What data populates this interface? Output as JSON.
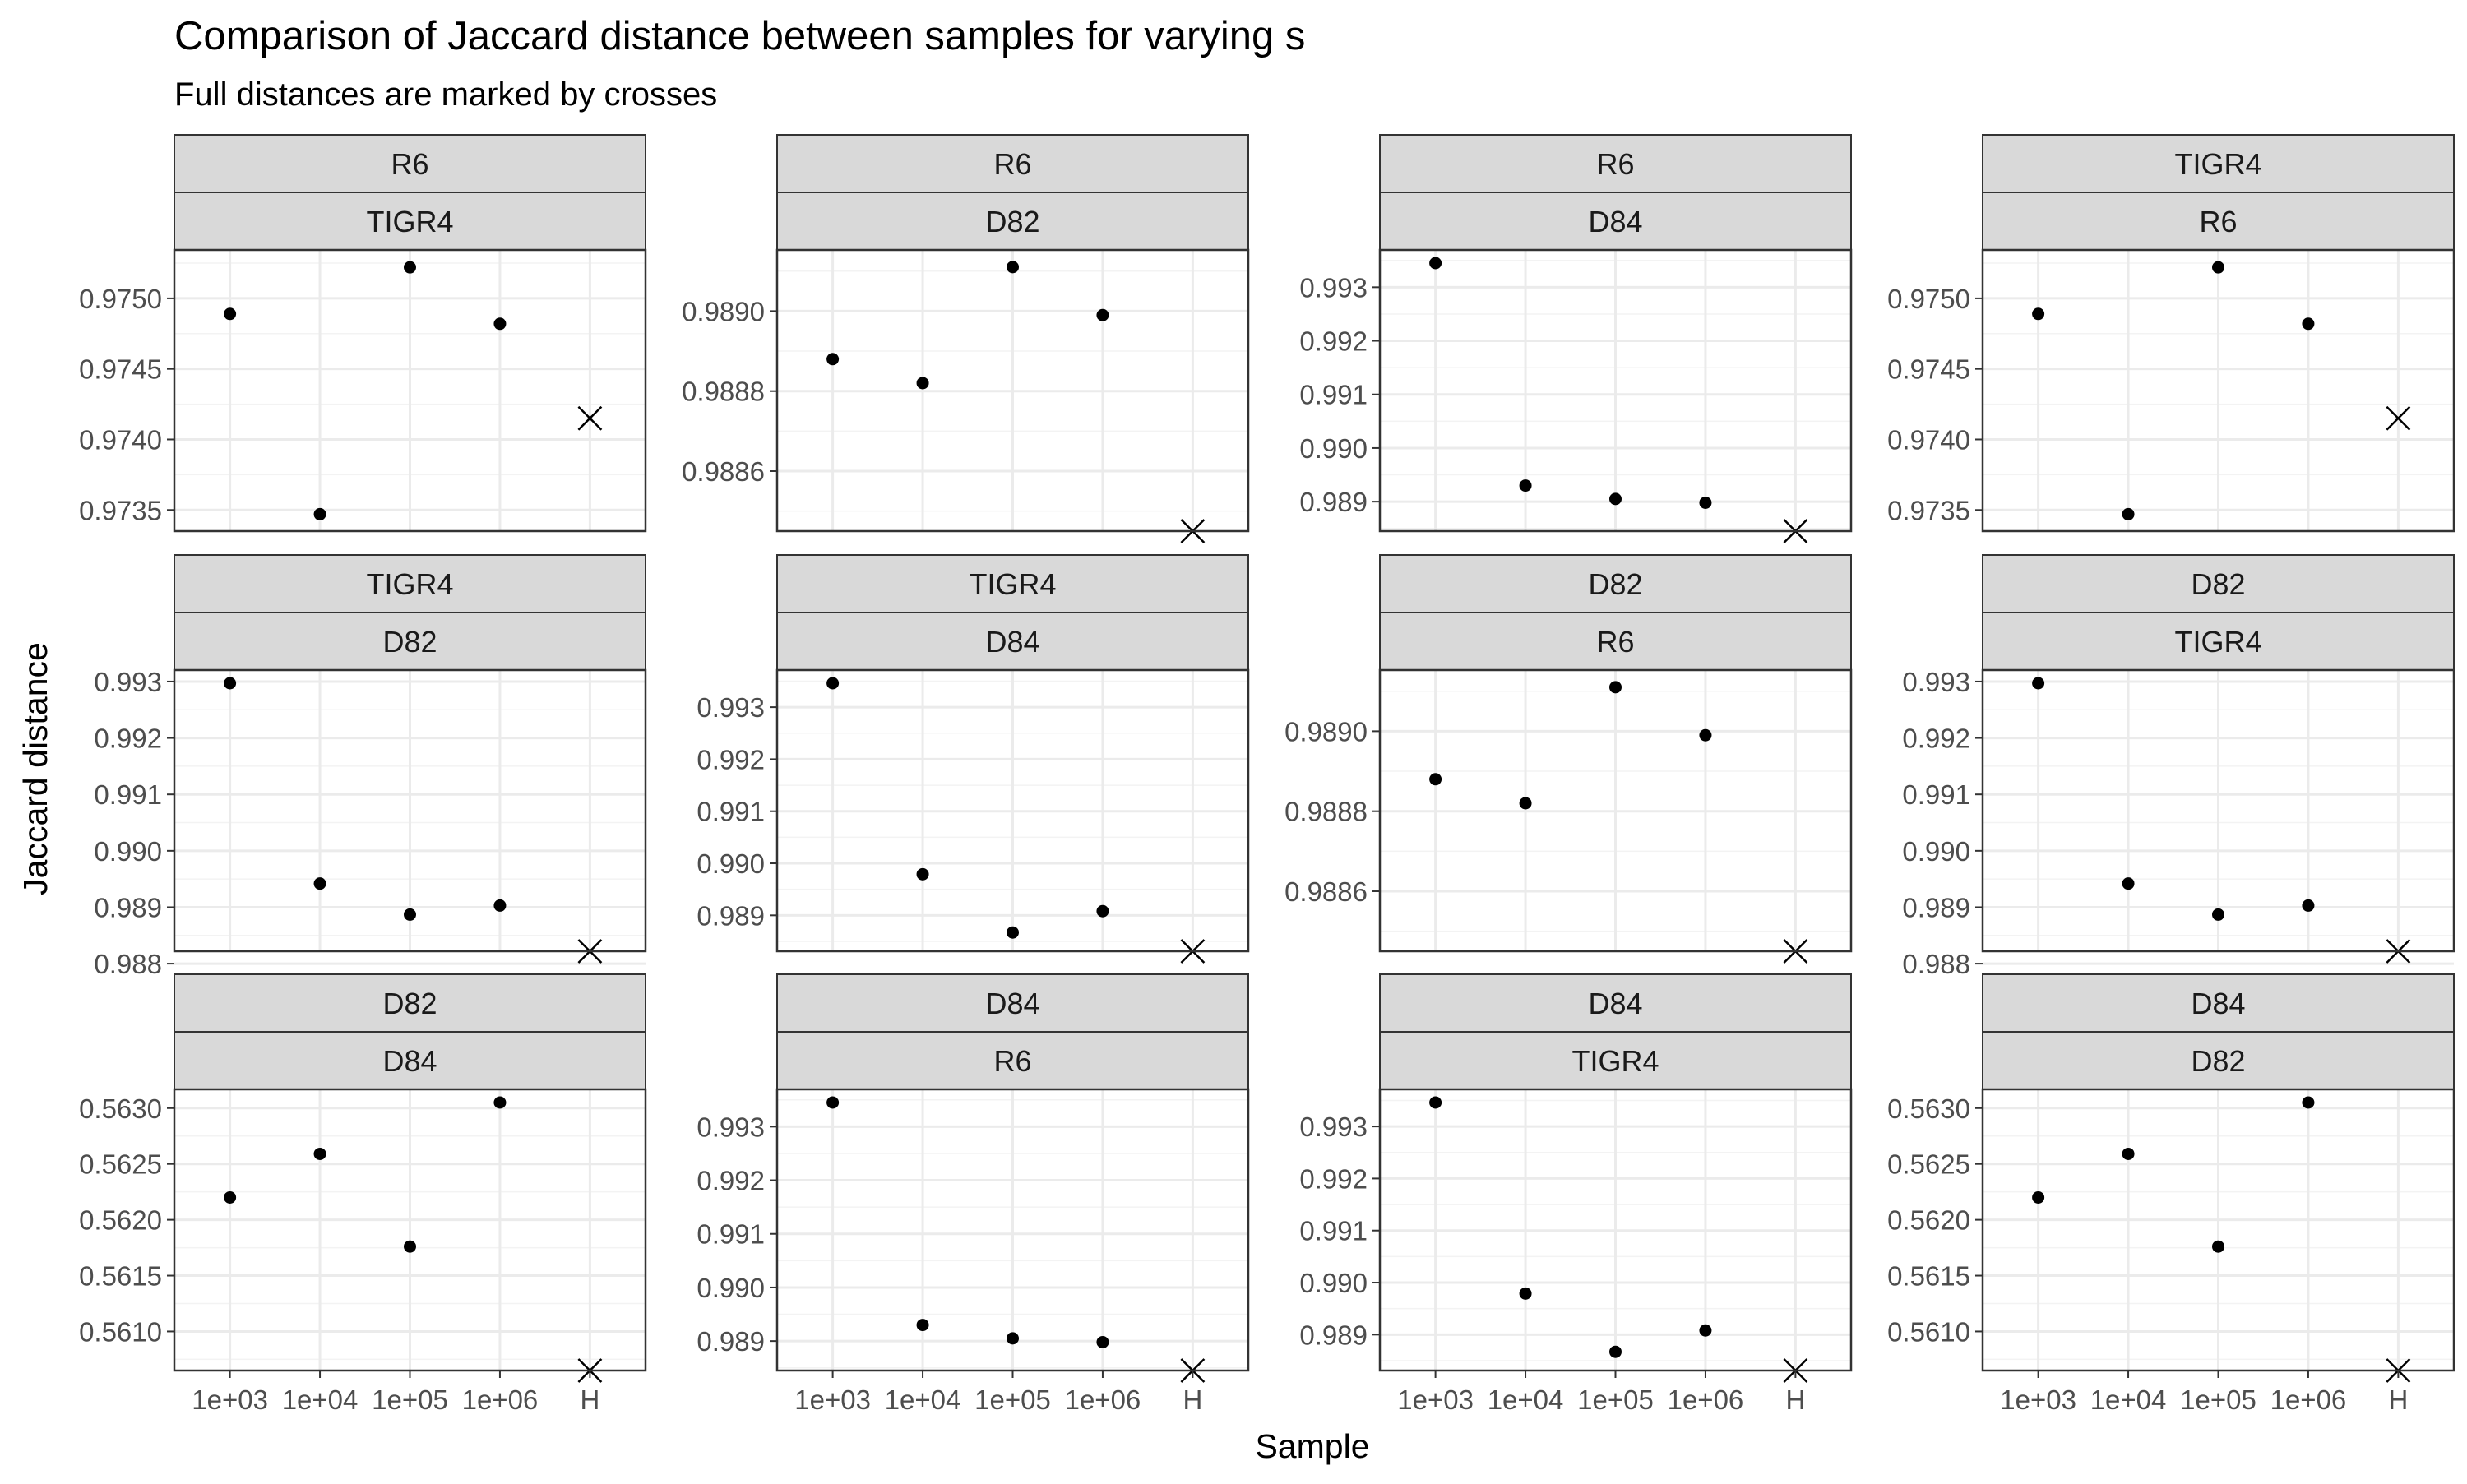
{
  "chart_data": {
    "type": "scatter",
    "title": "Comparison of Jaccard distance between samples for varying s",
    "subtitle": "Full distances are marked by crosses",
    "xlabel": "Sample",
    "ylabel": "Jaccard distance",
    "x_categories": [
      "1e+03",
      "1e+04",
      "1e+05",
      "1e+06",
      "H"
    ],
    "grid": true,
    "legend": "none",
    "facet_rows": 3,
    "facet_cols": 4,
    "marker_styles": {
      "sampled": "dot",
      "full": "cross"
    },
    "colors": {
      "marker": "#000000",
      "strip": "#d9d9d9",
      "border": "#333333",
      "grid": "#ebebeb"
    },
    "panels": [
      {
        "strip_top": "R6",
        "strip_bottom": "TIGR4",
        "ylim": [
          0.97335,
          0.97525
        ],
        "yticks": [
          0.9735,
          0.974,
          0.9745,
          0.975
        ],
        "yticklabels": [
          "0.9735",
          "0.9740",
          "0.9745",
          "0.9750"
        ],
        "values": [
          0.97489,
          0.97347,
          0.97522,
          0.97482
        ],
        "full": 0.97415
      },
      {
        "strip_top": "R6",
        "strip_bottom": "D82",
        "ylim": [
          0.98845,
          0.98912
        ],
        "yticks": [
          0.9886,
          0.9888,
          0.989
        ],
        "yticklabels": [
          "0.9886",
          "0.9888",
          "0.9890"
        ],
        "values": [
          0.98888,
          0.98882,
          0.98911,
          0.98899
        ],
        "full": 0.98845
      },
      {
        "strip_top": "R6",
        "strip_bottom": "D84",
        "ylim": [
          0.98845,
          0.99345
        ],
        "yticks": [
          0.989,
          0.99,
          0.991,
          0.992,
          0.993
        ],
        "yticklabels": [
          "0.989",
          "0.990",
          "0.991",
          "0.992",
          "0.993"
        ],
        "values": [
          0.99345,
          0.9893,
          0.98905,
          0.98898
        ],
        "full": 0.98845
      },
      {
        "strip_top": "TIGR4",
        "strip_bottom": "R6",
        "ylim": [
          0.97335,
          0.97525
        ],
        "yticks": [
          0.9735,
          0.974,
          0.9745,
          0.975
        ],
        "yticklabels": [
          "0.9735",
          "0.9740",
          "0.9745",
          "0.9750"
        ],
        "values": [
          0.97489,
          0.97347,
          0.97522,
          0.97482
        ],
        "full": 0.97415
      },
      {
        "strip_top": "TIGR4",
        "strip_bottom": "D82",
        "ylim": [
          0.98822,
          0.99297
        ],
        "yticks": [
          0.988,
          0.989,
          0.99,
          0.991,
          0.992,
          0.993
        ],
        "yticklabels": [
          "0.988",
          "0.989",
          "0.990",
          "0.991",
          "0.992",
          "0.993"
        ],
        "values": [
          0.99297,
          0.98942,
          0.98887,
          0.98903
        ],
        "full": 0.98822
      },
      {
        "strip_top": "TIGR4",
        "strip_bottom": "D84",
        "ylim": [
          0.98831,
          0.99346
        ],
        "yticks": [
          0.989,
          0.99,
          0.991,
          0.992,
          0.993
        ],
        "yticklabels": [
          "0.989",
          "0.990",
          "0.991",
          "0.992",
          "0.993"
        ],
        "values": [
          0.99346,
          0.98979,
          0.98867,
          0.98908
        ],
        "full": 0.98831
      },
      {
        "strip_top": "D82",
        "strip_bottom": "R6",
        "ylim": [
          0.98845,
          0.98912
        ],
        "yticks": [
          0.9886,
          0.9888,
          0.989
        ],
        "yticklabels": [
          "0.9886",
          "0.9888",
          "0.9890"
        ],
        "values": [
          0.98888,
          0.98882,
          0.98911,
          0.98899
        ],
        "full": 0.98845
      },
      {
        "strip_top": "D82",
        "strip_bottom": "TIGR4",
        "ylim": [
          0.98822,
          0.99297
        ],
        "yticks": [
          0.988,
          0.989,
          0.99,
          0.991,
          0.992,
          0.993
        ],
        "yticklabels": [
          "0.988",
          "0.989",
          "0.990",
          "0.991",
          "0.992",
          "0.993"
        ],
        "values": [
          0.99297,
          0.98942,
          0.98887,
          0.98903
        ],
        "full": 0.98822
      },
      {
        "strip_top": "D82",
        "strip_bottom": "D84",
        "ylim": [
          0.56065,
          0.56305
        ],
        "yticks": [
          0.561,
          0.5615,
          0.562,
          0.5625,
          0.563
        ],
        "yticklabels": [
          "0.5610",
          "0.5615",
          "0.5620",
          "0.5625",
          "0.5630"
        ],
        "values": [
          0.5622,
          0.56259,
          0.56176,
          0.56305
        ],
        "full": 0.56065
      },
      {
        "strip_top": "D84",
        "strip_bottom": "R6",
        "ylim": [
          0.98845,
          0.99345
        ],
        "yticks": [
          0.989,
          0.99,
          0.991,
          0.992,
          0.993
        ],
        "yticklabels": [
          "0.989",
          "0.990",
          "0.991",
          "0.992",
          "0.993"
        ],
        "values": [
          0.99345,
          0.9893,
          0.98905,
          0.98898
        ],
        "full": 0.98845
      },
      {
        "strip_top": "D84",
        "strip_bottom": "TIGR4",
        "ylim": [
          0.98831,
          0.99346
        ],
        "yticks": [
          0.989,
          0.99,
          0.991,
          0.992,
          0.993
        ],
        "yticklabels": [
          "0.989",
          "0.990",
          "0.991",
          "0.992",
          "0.993"
        ],
        "values": [
          0.99346,
          0.98979,
          0.98867,
          0.98908
        ],
        "full": 0.98831
      },
      {
        "strip_top": "D84",
        "strip_bottom": "D82",
        "ylim": [
          0.56065,
          0.56305
        ],
        "yticks": [
          0.561,
          0.5615,
          0.562,
          0.5625,
          0.563
        ],
        "yticklabels": [
          "0.5610",
          "0.5615",
          "0.5620",
          "0.5625",
          "0.5630"
        ],
        "values": [
          0.5622,
          0.56259,
          0.56176,
          0.56305
        ],
        "full": 0.56065
      }
    ]
  }
}
